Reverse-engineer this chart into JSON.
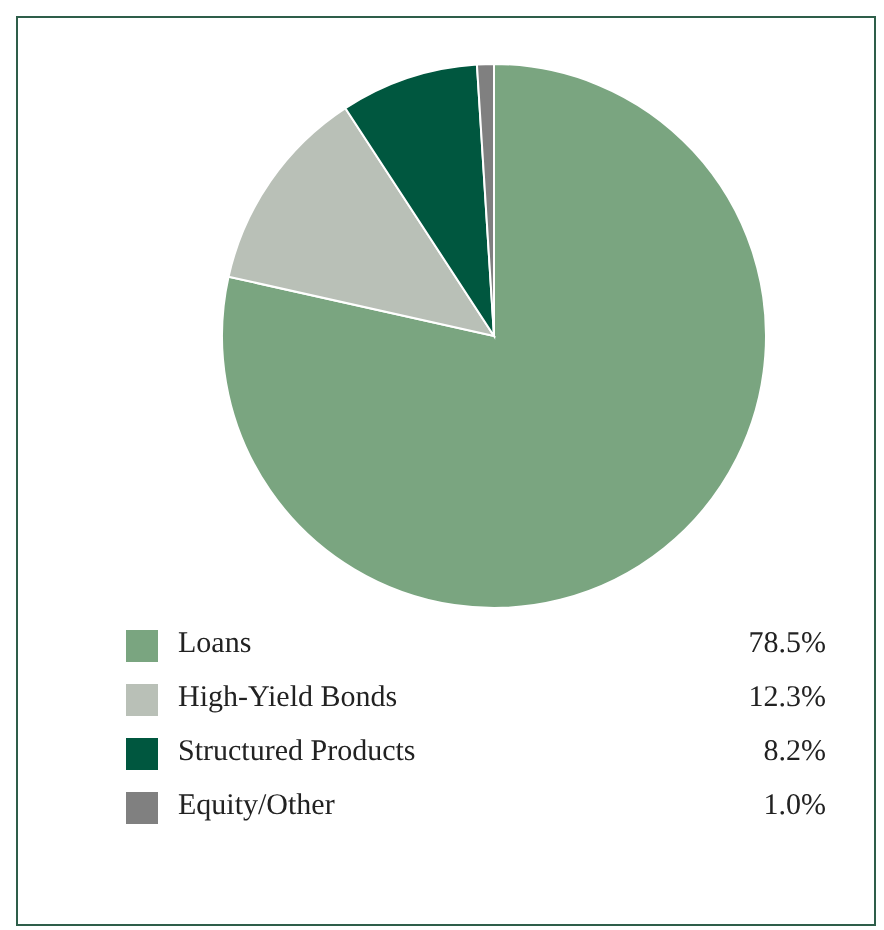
{
  "chart_data": {
    "type": "pie",
    "categories": [
      "Loans",
      "High-Yield Bonds",
      "Structured Products",
      "Equity/Other"
    ],
    "values": [
      78.5,
      12.3,
      8.2,
      1.0
    ],
    "colors": [
      "#7aa580",
      "#b9c0b7",
      "#00573f",
      "#808080"
    ],
    "value_labels": [
      "78.5%",
      "12.3%",
      "8.2%",
      "1.0%"
    ],
    "legend": "bottom"
  }
}
